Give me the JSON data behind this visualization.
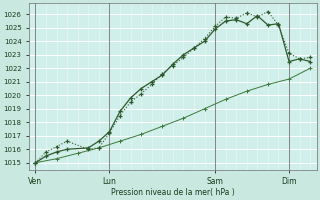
{
  "xlabel": "Pression niveau de la mer( hPa )",
  "bg_color": "#c8e8e0",
  "plot_bg_color": "#d0eeea",
  "grid_color": "#ffffff",
  "line_color1": "#2d5a2d",
  "line_color2": "#2d5a2d",
  "line_color3": "#3a7a3a",
  "ylim": [
    1014.5,
    1026.8
  ],
  "xlim": [
    -0.3,
    13.3
  ],
  "yticks": [
    1015,
    1016,
    1017,
    1018,
    1019,
    1020,
    1021,
    1022,
    1023,
    1024,
    1025,
    1026
  ],
  "day_labels": [
    "Ven",
    "Lun",
    "Sam",
    "Dim"
  ],
  "day_positions": [
    0.0,
    3.5,
    8.5,
    12.0
  ],
  "series1_x": [
    0,
    0.5,
    1.0,
    1.5,
    2.5,
    3.0,
    3.5,
    4.0,
    4.5,
    5.0,
    5.5,
    6.0,
    6.5,
    7.0,
    7.5,
    8.0,
    8.5,
    9.0,
    9.5,
    10.0,
    10.5,
    11.0,
    11.5,
    12.0,
    12.5,
    13.0
  ],
  "series1_y": [
    1015.0,
    1015.8,
    1016.2,
    1016.6,
    1016.0,
    1016.1,
    1017.2,
    1018.5,
    1019.5,
    1020.1,
    1020.8,
    1021.6,
    1022.2,
    1022.8,
    1023.5,
    1024.2,
    1025.1,
    1025.8,
    1025.7,
    1026.1,
    1025.8,
    1026.2,
    1025.2,
    1023.1,
    1022.7,
    1022.8
  ],
  "series2_x": [
    0,
    0.5,
    1.0,
    1.5,
    2.5,
    3.0,
    3.5,
    4.0,
    4.5,
    5.0,
    5.5,
    6.0,
    6.5,
    7.0,
    7.5,
    8.0,
    8.5,
    9.0,
    9.5,
    10.0,
    10.5,
    11.0,
    11.5,
    12.0,
    12.5,
    13.0
  ],
  "series2_y": [
    1015.0,
    1015.5,
    1015.8,
    1016.0,
    1016.1,
    1016.6,
    1017.3,
    1018.8,
    1019.8,
    1020.5,
    1021.0,
    1021.5,
    1022.3,
    1023.0,
    1023.5,
    1024.0,
    1024.9,
    1025.5,
    1025.6,
    1025.3,
    1025.9,
    1025.2,
    1025.3,
    1022.5,
    1022.7,
    1022.5
  ],
  "series3_x": [
    0,
    1.0,
    2.0,
    3.0,
    4.0,
    5.0,
    6.0,
    7.0,
    8.0,
    9.0,
    10.0,
    11.0,
    12.0,
    13.0
  ],
  "series3_y": [
    1015.0,
    1015.3,
    1015.7,
    1016.1,
    1016.6,
    1017.1,
    1017.7,
    1018.3,
    1019.0,
    1019.7,
    1020.3,
    1020.8,
    1021.2,
    1022.0
  ]
}
